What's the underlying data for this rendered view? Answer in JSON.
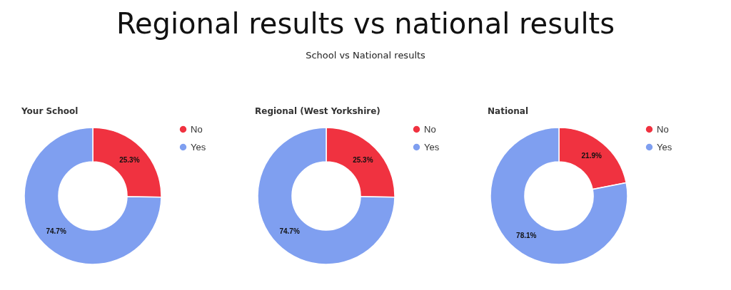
{
  "chart_data": [
    {
      "type": "other",
      "title": "Regional results vs national results",
      "subtitle": "School vs National results"
    },
    {
      "type": "donut",
      "title": "Your School",
      "categories": [
        "No",
        "Yes"
      ],
      "values": [
        25.3,
        74.7
      ],
      "colors": [
        "#f03240",
        "#7f9ff0"
      ],
      "value_labels": [
        "25.3%",
        "74.7%"
      ],
      "legend": "top right"
    },
    {
      "type": "donut",
      "title": "Regional (West Yorkshire)",
      "categories": [
        "No",
        "Yes"
      ],
      "values": [
        25.3,
        74.7
      ],
      "colors": [
        "#f03240",
        "#7f9ff0"
      ],
      "value_labels": [
        "25.3%",
        "74.7%"
      ],
      "legend": "top right"
    },
    {
      "type": "donut",
      "title": "National",
      "categories": [
        "No",
        "Yes"
      ],
      "values": [
        21.9,
        78.1
      ],
      "colors": [
        "#f03240",
        "#7f9ff0"
      ],
      "value_labels": [
        "21.9%",
        "78.1%"
      ],
      "legend": "top right"
    }
  ]
}
